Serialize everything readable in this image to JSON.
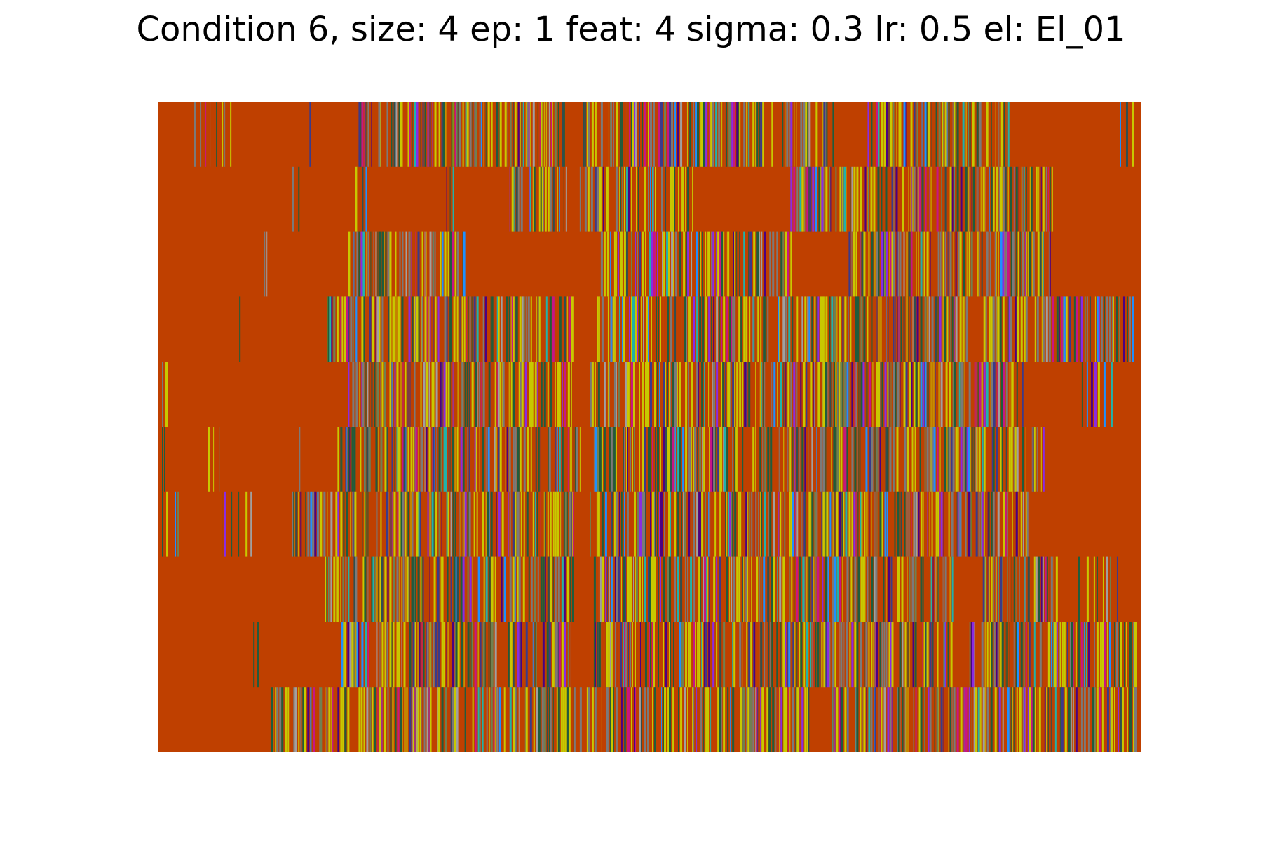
{
  "chart_data": {
    "type": "heatmap",
    "title": "Condition 6, size: 4 ep: 1 feat: 4 sigma: 0.3 lr: 0.5 el: El_01",
    "xlabel": "",
    "ylabel": "",
    "axes_visible": false,
    "grid": false,
    "rows": 10,
    "columns": 1400,
    "background_color": "#bf4000",
    "stripe_palette": [
      "#c8c800",
      "#1f5c3c",
      "#7a7a7a",
      "#4b0082",
      "#8a2be2",
      "#2f4f4f",
      "#c71585",
      "#1e90ff",
      "#20b2aa",
      "#708050",
      "#3a3a8a",
      "#a0a0a0"
    ],
    "row_active_ranges": [
      [
        [
          50,
          110
        ],
        [
          215,
          215
        ],
        [
          285,
          580
        ],
        [
          605,
          960
        ],
        [
          1010,
          1210
        ],
        [
          1370,
          1390
        ]
      ],
      [
        [
          190,
          200
        ],
        [
          280,
          300
        ],
        [
          410,
          420
        ],
        [
          500,
          580
        ],
        [
          600,
          760
        ],
        [
          900,
          1280
        ]
      ],
      [
        [
          150,
          160
        ],
        [
          270,
          440
        ],
        [
          625,
          900
        ],
        [
          980,
          1270
        ]
      ],
      [
        [
          115,
          120
        ],
        [
          240,
          590
        ],
        [
          625,
          1150
        ],
        [
          1175,
          1390
        ]
      ],
      [
        [
          5,
          10
        ],
        [
          270,
          590
        ],
        [
          615,
          1230
        ],
        [
          1315,
          1360
        ]
      ],
      [
        [
          5,
          10
        ],
        [
          70,
          90
        ],
        [
          200,
          200
        ],
        [
          255,
          600
        ],
        [
          620,
          1260
        ]
      ],
      [
        [
          5,
          30
        ],
        [
          90,
          140
        ],
        [
          190,
          590
        ],
        [
          615,
          1240
        ]
      ],
      [
        [
          235,
          590
        ],
        [
          620,
          1130
        ],
        [
          1170,
          1280
        ],
        [
          1310,
          1370
        ]
      ],
      [
        [
          135,
          140
        ],
        [
          260,
          590
        ],
        [
          620,
          1130
        ],
        [
          1155,
          1390
        ]
      ],
      [
        [
          160,
          270
        ],
        [
          285,
          600
        ],
        [
          610,
          930
        ],
        [
          960,
          1390
        ]
      ]
    ]
  }
}
